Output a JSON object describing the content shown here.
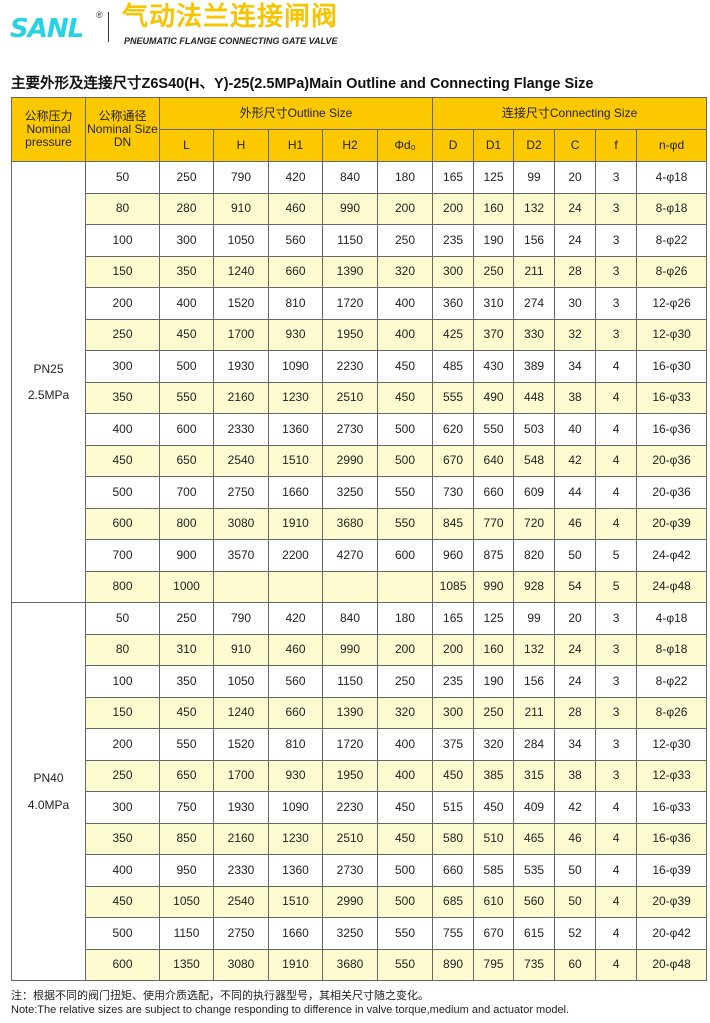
{
  "brand": {
    "logo": "SANL",
    "registered": "®",
    "title_cn": "气动法兰连接闸阀",
    "title_en": "PNEUMATIC FLANGE CONNECTING GATE VALVE",
    "colors": {
      "logo": "#27d3e3",
      "title": "#f4c500",
      "header": "#fcc800",
      "row_alt": "#fdfbd0"
    }
  },
  "page_title": "主要外形及连接尺寸Z6S40(H、Y)-25(2.5MPa)Main Outline and Connecting Flange Size",
  "header": {
    "pressure": [
      "公称压力",
      "Nominal",
      "pressure"
    ],
    "size": [
      "公称通径",
      "Nominal Size",
      "DN"
    ],
    "outline": "外形尺寸Outline Size",
    "connecting": "连接尺寸Connecting Size",
    "columns": [
      "L",
      "H",
      "H1",
      "H2",
      "Φd₀",
      "D",
      "D1",
      "D2",
      "C",
      "f",
      "n-φd"
    ]
  },
  "groups": [
    {
      "pressure": "PN25",
      "mpa": "2.5MPa",
      "rows": [
        [
          "50",
          "250",
          "790",
          "420",
          "840",
          "180",
          "165",
          "125",
          "99",
          "20",
          "3",
          "4-φ18"
        ],
        [
          "80",
          "280",
          "910",
          "460",
          "990",
          "200",
          "200",
          "160",
          "132",
          "24",
          "3",
          "8-φ18"
        ],
        [
          "100",
          "300",
          "1050",
          "560",
          "1150",
          "250",
          "235",
          "190",
          "156",
          "24",
          "3",
          "8-φ22"
        ],
        [
          "150",
          "350",
          "1240",
          "660",
          "1390",
          "320",
          "300",
          "250",
          "211",
          "28",
          "3",
          "8-φ26"
        ],
        [
          "200",
          "400",
          "1520",
          "810",
          "1720",
          "400",
          "360",
          "310",
          "274",
          "30",
          "3",
          "12-φ26"
        ],
        [
          "250",
          "450",
          "1700",
          "930",
          "1950",
          "400",
          "425",
          "370",
          "330",
          "32",
          "3",
          "12-φ30"
        ],
        [
          "300",
          "500",
          "1930",
          "1090",
          "2230",
          "450",
          "485",
          "430",
          "389",
          "34",
          "4",
          "16-φ30"
        ],
        [
          "350",
          "550",
          "2160",
          "1230",
          "2510",
          "450",
          "555",
          "490",
          "448",
          "38",
          "4",
          "16-φ33"
        ],
        [
          "400",
          "600",
          "2330",
          "1360",
          "2730",
          "500",
          "620",
          "550",
          "503",
          "40",
          "4",
          "16-φ36"
        ],
        [
          "450",
          "650",
          "2540",
          "1510",
          "2990",
          "500",
          "670",
          "640",
          "548",
          "42",
          "4",
          "20-φ36"
        ],
        [
          "500",
          "700",
          "2750",
          "1660",
          "3250",
          "550",
          "730",
          "660",
          "609",
          "44",
          "4",
          "20-φ36"
        ],
        [
          "600",
          "800",
          "3080",
          "1910",
          "3680",
          "550",
          "845",
          "770",
          "720",
          "46",
          "4",
          "20-φ39"
        ],
        [
          "700",
          "900",
          "3570",
          "2200",
          "4270",
          "600",
          "960",
          "875",
          "820",
          "50",
          "5",
          "24-φ42"
        ],
        [
          "800",
          "1000",
          "",
          "",
          "",
          "",
          "1085",
          "990",
          "928",
          "54",
          "5",
          "24-φ48"
        ]
      ]
    },
    {
      "pressure": "PN40",
      "mpa": "4.0MPa",
      "rows": [
        [
          "50",
          "250",
          "790",
          "420",
          "840",
          "180",
          "165",
          "125",
          "99",
          "20",
          "3",
          "4-φ18"
        ],
        [
          "80",
          "310",
          "910",
          "460",
          "990",
          "200",
          "200",
          "160",
          "132",
          "24",
          "3",
          "8-φ18"
        ],
        [
          "100",
          "350",
          "1050",
          "560",
          "1150",
          "250",
          "235",
          "190",
          "156",
          "24",
          "3",
          "8-φ22"
        ],
        [
          "150",
          "450",
          "1240",
          "660",
          "1390",
          "320",
          "300",
          "250",
          "211",
          "28",
          "3",
          "8-φ26"
        ],
        [
          "200",
          "550",
          "1520",
          "810",
          "1720",
          "400",
          "375",
          "320",
          "284",
          "34",
          "3",
          "12-φ30"
        ],
        [
          "250",
          "650",
          "1700",
          "930",
          "1950",
          "400",
          "450",
          "385",
          "315",
          "38",
          "3",
          "12-φ33"
        ],
        [
          "300",
          "750",
          "1930",
          "1090",
          "2230",
          "450",
          "515",
          "450",
          "409",
          "42",
          "4",
          "16-φ33"
        ],
        [
          "350",
          "850",
          "2160",
          "1230",
          "2510",
          "450",
          "580",
          "510",
          "465",
          "46",
          "4",
          "16-φ36"
        ],
        [
          "400",
          "950",
          "2330",
          "1360",
          "2730",
          "500",
          "660",
          "585",
          "535",
          "50",
          "4",
          "16-φ39"
        ],
        [
          "450",
          "1050",
          "2540",
          "1510",
          "2990",
          "500",
          "685",
          "610",
          "560",
          "50",
          "4",
          "20-φ39"
        ],
        [
          "500",
          "1150",
          "2750",
          "1660",
          "3250",
          "550",
          "755",
          "670",
          "615",
          "52",
          "4",
          "20-φ42"
        ],
        [
          "600",
          "1350",
          "3080",
          "1910",
          "3680",
          "550",
          "890",
          "795",
          "735",
          "60",
          "4",
          "20-φ48"
        ]
      ]
    }
  ],
  "note": {
    "cn": "注：根据不同的阀门扭矩、使用介质选配，不同的执行器型号，其相关尺寸随之变化。",
    "en": "Note:The relative sizes are subject to change responding to difference in valve torque,medium and actuator model."
  }
}
